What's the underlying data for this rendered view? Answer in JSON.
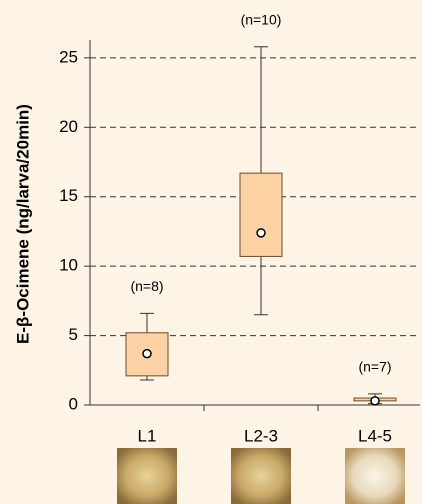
{
  "chart_data": {
    "type": "box",
    "y_label": "E-β-Ocimene (ng/larva/20min)",
    "categories": [
      "L1",
      "L2-3",
      "L4-5"
    ],
    "annotations": [
      "(n=8)",
      "(n=10)",
      "(n=7)"
    ],
    "whisker_low": [
      1.8,
      6.5,
      0.1
    ],
    "q1": [
      2.1,
      10.7,
      0.3
    ],
    "q3": [
      5.2,
      16.7,
      0.5
    ],
    "whisker_high": [
      6.6,
      25.8,
      0.8
    ],
    "mean": [
      3.7,
      12.4,
      0.3
    ],
    "color": "#fcd2a4",
    "ylim": [
      0,
      26
    ],
    "yticks": [
      0,
      5,
      10,
      15,
      20,
      25
    ],
    "grid": true
  }
}
